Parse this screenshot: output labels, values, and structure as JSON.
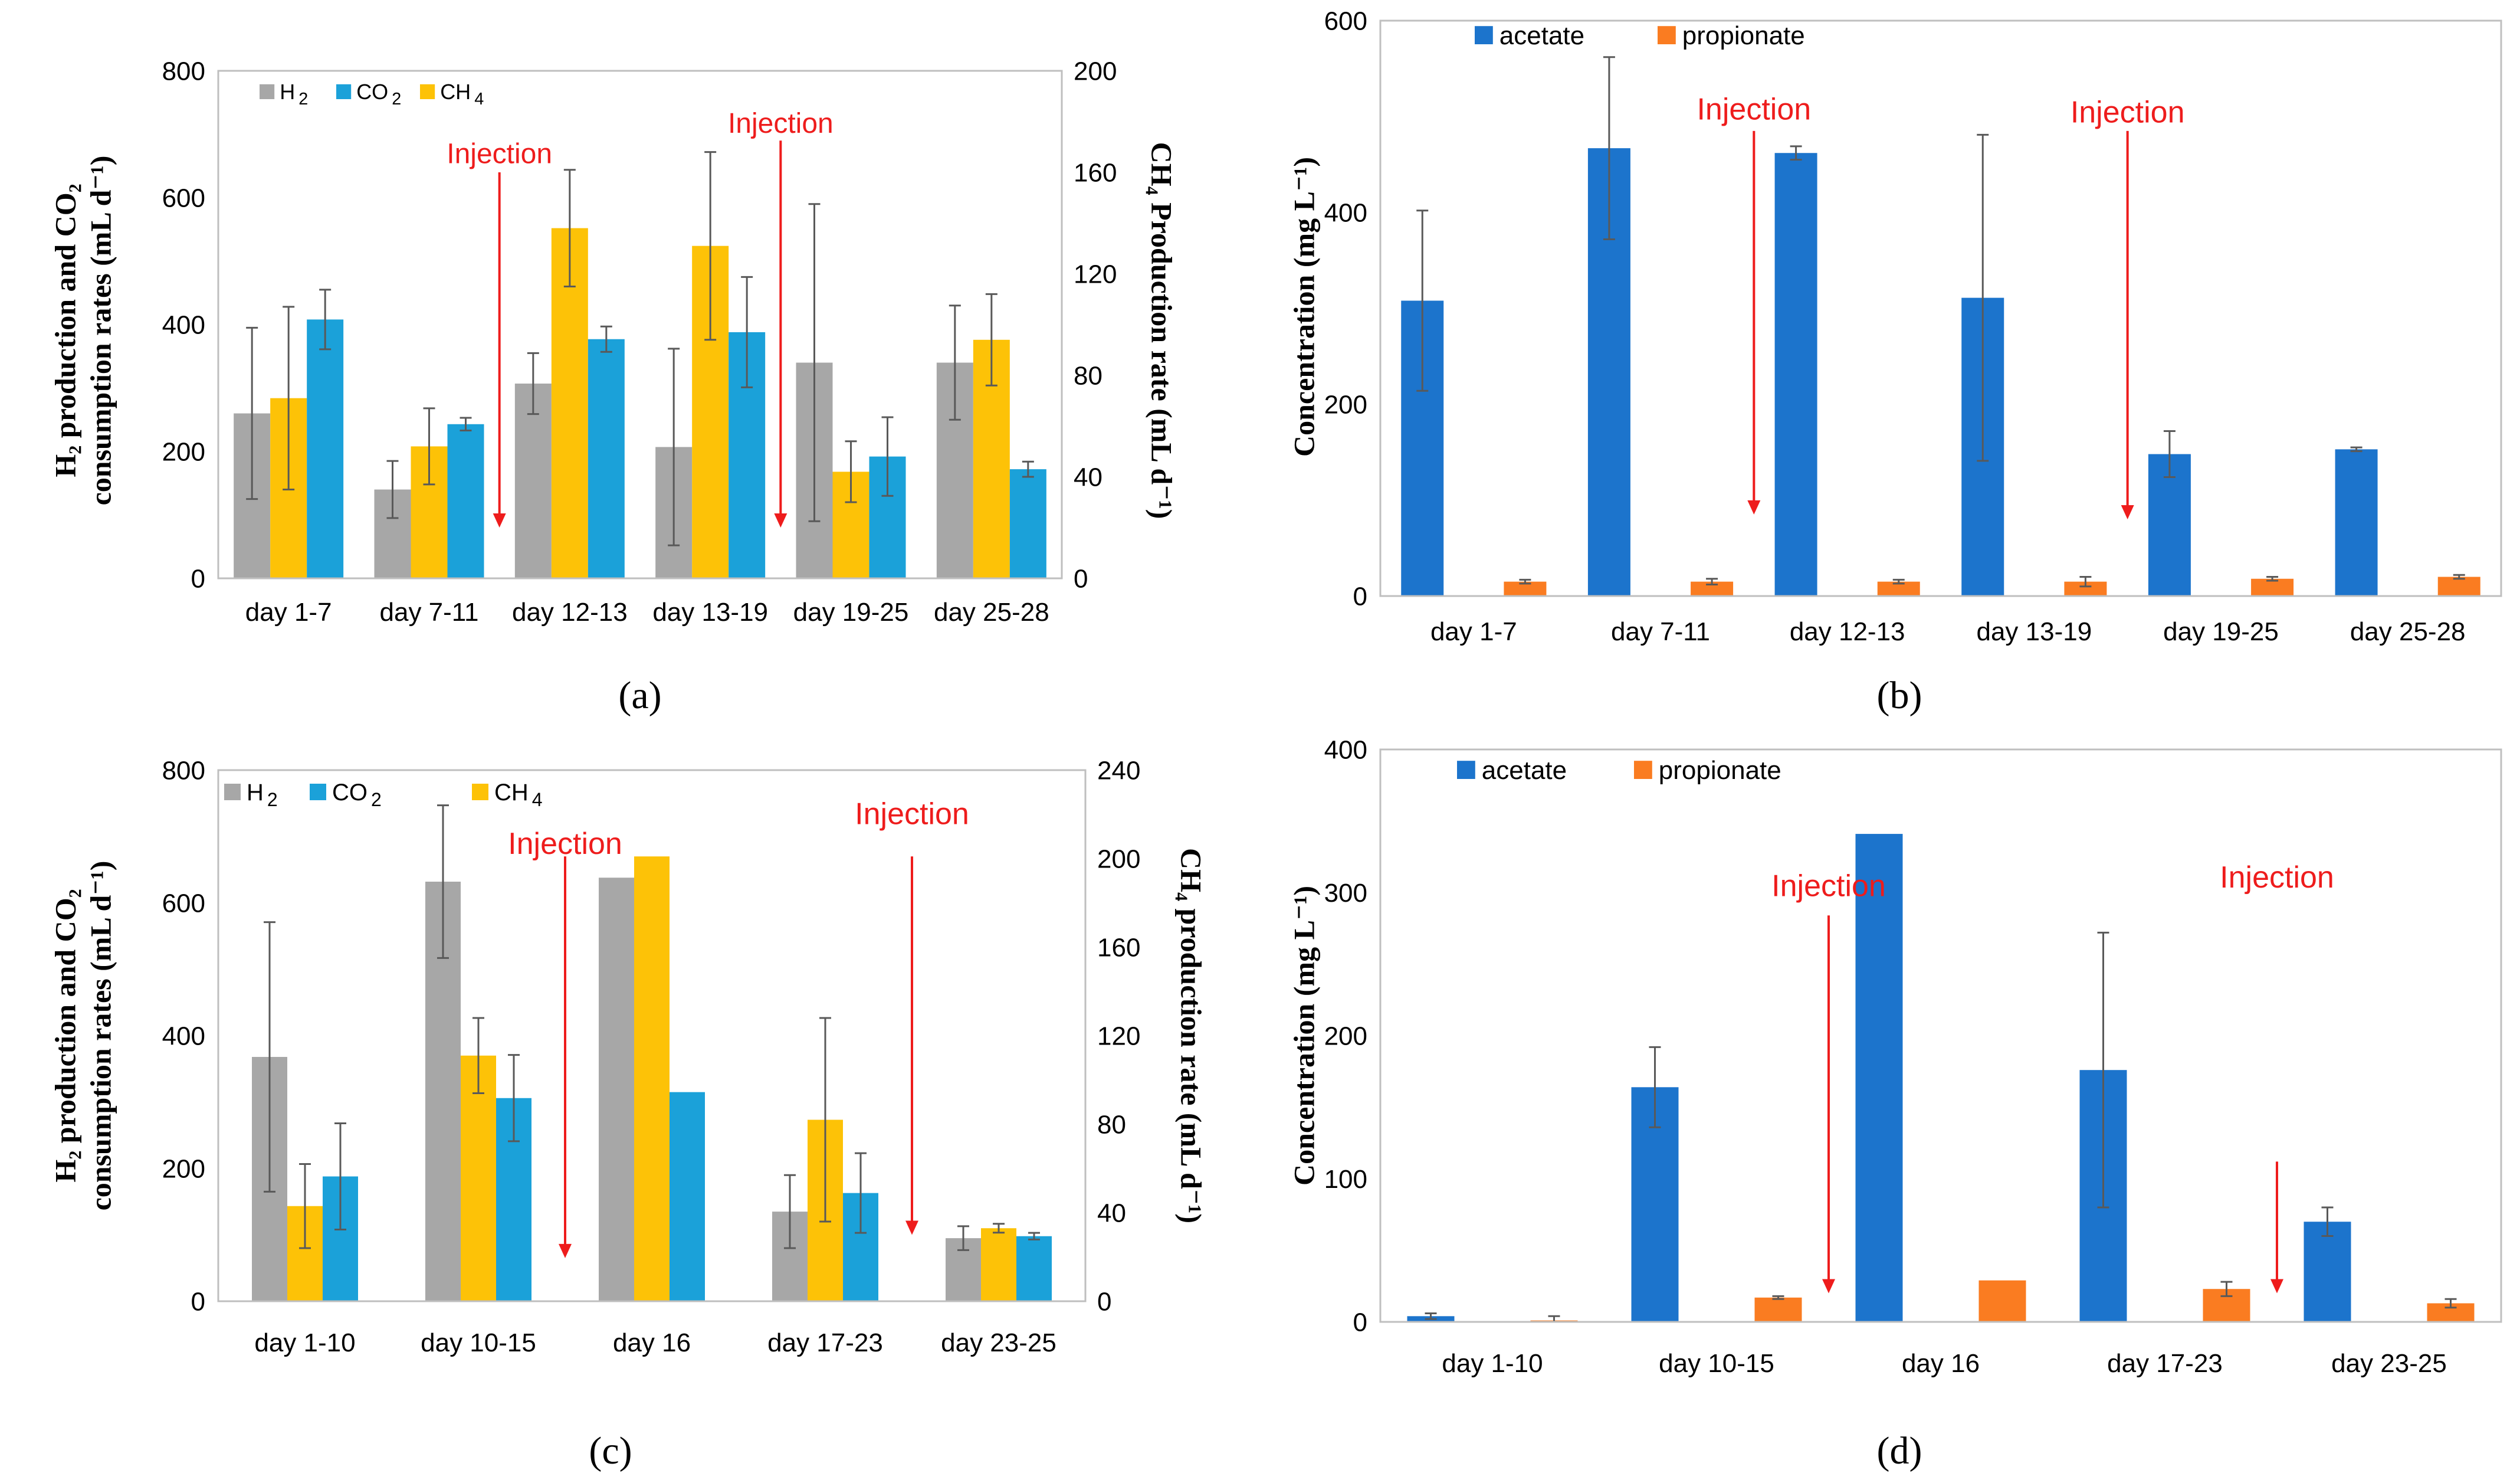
{
  "colors": {
    "h2": "#a7a7a7",
    "co2": "#1ba1d9",
    "ch4": "#fdc207",
    "acetate": "#1c74cc",
    "propionate": "#fa7c21",
    "injection": "#ee1c1c",
    "error_bar": "#595959"
  },
  "chart_data": [
    {
      "id": "a",
      "panel_label": "(a)",
      "type": "bar",
      "categories": [
        "day 1-7",
        "day 7-11",
        "day 12-13",
        "day 13-19",
        "day 19-25",
        "day 25-28"
      ],
      "series": [
        {
          "name": "H2",
          "legend_main": "H",
          "legend_sub": "2",
          "axis": "left",
          "color_key": "h2",
          "values": [
            260,
            140,
            307,
            207,
            340,
            340
          ],
          "errors": [
            135,
            45,
            48,
            155,
            250,
            90
          ]
        },
        {
          "name": "CH4",
          "legend_main": "CH",
          "legend_sub": "4",
          "axis": "right",
          "color_key": "ch4",
          "values": [
            71,
            52,
            138,
            131,
            42,
            94
          ],
          "errors": [
            36,
            15,
            23,
            37,
            12,
            18
          ]
        },
        {
          "name": "CO2",
          "legend_main": "CO",
          "legend_sub": "2",
          "axis": "left",
          "color_key": "co2",
          "values": [
            408,
            243,
            377,
            388,
            192,
            172
          ],
          "errors": [
            47,
            10,
            20,
            87,
            62,
            12
          ]
        }
      ],
      "legend_order": [
        "H2",
        "CO2",
        "CH4"
      ],
      "y_left": {
        "label_lines": [
          "H₂ production and CO₂",
          "consumption rates (mL d⁻¹)"
        ],
        "ylim": [
          0,
          800
        ],
        "ticks": [
          0,
          200,
          400,
          600,
          800
        ]
      },
      "y_right": {
        "label": "CH₄ Production rate (mL d⁻¹)",
        "ylim": [
          0,
          200
        ],
        "ticks": [
          0,
          40,
          80,
          120,
          160,
          200
        ]
      },
      "injections": [
        {
          "label": "Injection",
          "after_category": 1,
          "arrow_top": 640,
          "arrow_bottom": 80,
          "label_at": 670
        },
        {
          "label": "Injection",
          "after_category": 3,
          "arrow_top": 690,
          "arrow_bottom": 80,
          "label_at": 718
        }
      ]
    },
    {
      "id": "b",
      "panel_label": "(b)",
      "type": "bar",
      "categories": [
        "day 1-7",
        "day 7-11",
        "day 12-13",
        "day 13-19",
        "day 19-25",
        "day 25-28"
      ],
      "series": [
        {
          "name": "acetate",
          "color_key": "acetate",
          "values": [
            308,
            467,
            462,
            311,
            148,
            153
          ],
          "errors": [
            94,
            95,
            7,
            170,
            24,
            2
          ]
        },
        {
          "name": "propionate",
          "color_key": "propionate",
          "values": [
            15,
            15,
            15,
            15,
            18,
            20
          ],
          "errors": [
            2,
            3,
            2,
            5,
            2,
            2
          ]
        }
      ],
      "y_axis": {
        "label": "Concentration (mg L⁻¹)",
        "ylim": [
          0,
          600
        ],
        "ticks": [
          0,
          200,
          400,
          600
        ]
      },
      "injections": [
        {
          "label": "Injection",
          "after_category": 1,
          "arrow_top": 485,
          "arrow_bottom": 85,
          "label_at": 508
        },
        {
          "label": "Injection",
          "after_category": 3,
          "arrow_top": 485,
          "arrow_bottom": 80,
          "label_at": 505
        }
      ]
    },
    {
      "id": "c",
      "panel_label": "(c)",
      "type": "bar",
      "categories": [
        "day 1-10",
        "day 10-15",
        "day 16",
        "day 17-23",
        "day 23-25"
      ],
      "series": [
        {
          "name": "H2",
          "legend_main": "H",
          "legend_sub": "2",
          "axis": "left",
          "color_key": "h2",
          "values": [
            368,
            632,
            638,
            135,
            95
          ],
          "errors": [
            203,
            115,
            0,
            55,
            18
          ]
        },
        {
          "name": "CH4",
          "legend_main": "CH",
          "legend_sub": "4",
          "axis": "right",
          "color_key": "ch4",
          "values": [
            43,
            111,
            201,
            82,
            33
          ],
          "errors": [
            19,
            17,
            0,
            46,
            2
          ]
        },
        {
          "name": "CO2",
          "legend_main": "CO",
          "legend_sub": "2",
          "axis": "left",
          "color_key": "co2",
          "values": [
            188,
            306,
            315,
            163,
            98
          ],
          "errors": [
            80,
            65,
            0,
            60,
            5
          ]
        }
      ],
      "legend_order": [
        "H2",
        "CO2",
        "CH4"
      ],
      "y_left": {
        "label_lines": [
          "H₂ production and CO₂",
          "consumption rates (mL d⁻¹)"
        ],
        "ylim": [
          0,
          800
        ],
        "ticks": [
          0,
          200,
          400,
          600,
          800
        ]
      },
      "y_right": {
        "label": "CH₄ production rate (mL d⁻¹)",
        "ylim": [
          0,
          240
        ],
        "ticks": [
          0,
          40,
          80,
          120,
          160,
          200,
          240
        ]
      },
      "injections": [
        {
          "label": "Injection",
          "after_category": 1,
          "arrow_top": 670,
          "arrow_bottom": 65,
          "label_at": 690
        },
        {
          "label": "Injection",
          "after_category": 3,
          "arrow_top": 670,
          "arrow_bottom": 100,
          "label_at": 735
        }
      ]
    },
    {
      "id": "d",
      "panel_label": "(d)",
      "type": "bar",
      "categories": [
        "day 1-10",
        "day 10-15",
        "day 16",
        "day 17-23",
        "day 23-25"
      ],
      "series": [
        {
          "name": "acetate",
          "color_key": "acetate",
          "values": [
            4,
            164,
            341,
            176,
            70
          ],
          "errors": [
            2,
            28,
            0,
            96,
            10
          ]
        },
        {
          "name": "propionate",
          "color_key": "propionate",
          "values": [
            1,
            17,
            29,
            23,
            13
          ],
          "errors": [
            3,
            1,
            0,
            5,
            3
          ]
        }
      ],
      "y_axis": {
        "label": "Concentration (mg L⁻¹)",
        "ylim": [
          0,
          400
        ],
        "ticks": [
          0,
          100,
          200,
          300,
          400
        ]
      },
      "injections": [
        {
          "label": "Injection",
          "after_category": 1,
          "arrow_top": 284,
          "arrow_bottom": 20,
          "label_at": 305
        },
        {
          "label": "Injection",
          "after_category": 3,
          "arrow_top": 112,
          "arrow_bottom": 20,
          "label_at": 311
        }
      ]
    }
  ]
}
